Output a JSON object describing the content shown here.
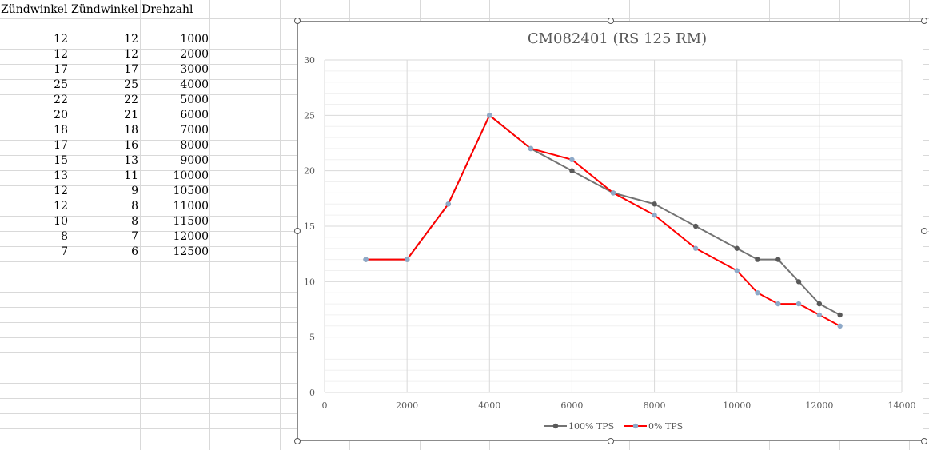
{
  "sheet": {
    "headers": [
      "Zündwinkel",
      "Zündwinkel",
      "Drehzahl"
    ],
    "rows": [
      [
        12,
        12,
        1000
      ],
      [
        12,
        12,
        2000
      ],
      [
        17,
        17,
        3000
      ],
      [
        25,
        25,
        4000
      ],
      [
        22,
        22,
        5000
      ],
      [
        20,
        21,
        6000
      ],
      [
        18,
        18,
        7000
      ],
      [
        17,
        16,
        8000
      ],
      [
        15,
        13,
        9000
      ],
      [
        13,
        11,
        10000
      ],
      [
        12,
        9,
        10500
      ],
      [
        12,
        8,
        11000
      ],
      [
        10,
        8,
        11500
      ],
      [
        8,
        7,
        12000
      ],
      [
        7,
        6,
        12500
      ]
    ]
  },
  "chart_data": {
    "type": "line",
    "title": "CM082401 (RS 125 RM)",
    "x": [
      1000,
      2000,
      3000,
      4000,
      5000,
      6000,
      7000,
      8000,
      9000,
      10000,
      10500,
      11000,
      11500,
      12000,
      12500
    ],
    "series": [
      {
        "name": "100% TPS",
        "values": [
          12,
          12,
          17,
          25,
          22,
          20,
          18,
          17,
          15,
          13,
          12,
          12,
          10,
          8,
          7
        ],
        "line_color": "#737373",
        "marker_color": "#595959"
      },
      {
        "name": "0% TPS",
        "values": [
          12,
          12,
          17,
          25,
          22,
          21,
          18,
          16,
          13,
          11,
          9,
          8,
          8,
          7,
          6
        ],
        "line_color": "#ff0000",
        "marker_color": "#8ea9c8"
      }
    ],
    "xlim": [
      0,
      14000
    ],
    "ylim": [
      0,
      30
    ],
    "xticks": [
      "0",
      "2000",
      "4000",
      "6000",
      "8000",
      "10000",
      "12000",
      "14000"
    ],
    "yticks": [
      "0",
      "5",
      "10",
      "15",
      "20",
      "25",
      "30"
    ],
    "grid": true,
    "legend": "bottom"
  }
}
